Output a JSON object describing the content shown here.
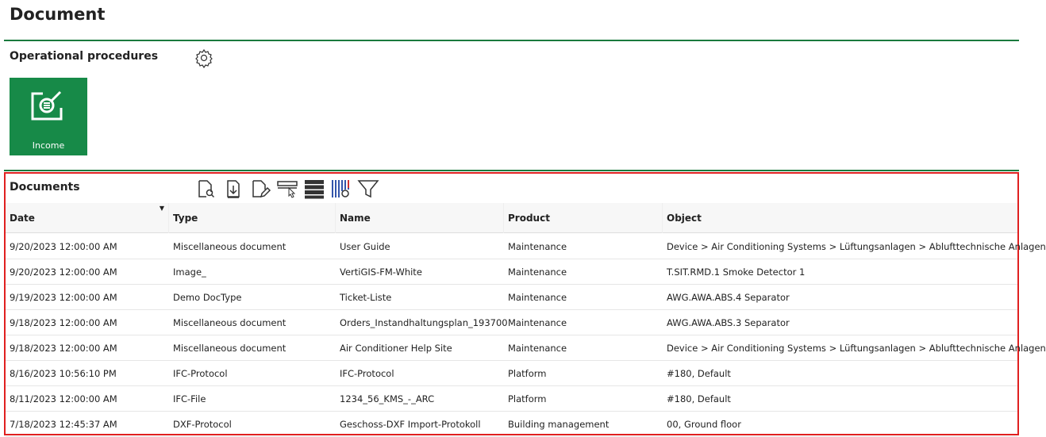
{
  "page_title": "Document",
  "operational": {
    "title": "Operational procedures",
    "settings_icon": "gear-icon",
    "tiles": [
      {
        "label": "Income",
        "icon": "document-search-icon",
        "color": "#178a48"
      }
    ]
  },
  "documents": {
    "title": "Documents",
    "toolbar": [
      "view-document-icon",
      "download-document-icon",
      "edit-document-icon",
      "select-row-icon",
      "rows-icon",
      "column-settings-icon",
      "filter-icon"
    ],
    "columns": [
      "Date",
      "Type",
      "Name",
      "Product",
      "Object"
    ],
    "sort": {
      "column": "Date",
      "direction": "descending"
    },
    "rows": [
      [
        "9/20/2023 12:00:00 AM",
        "Miscellaneous document",
        "User Guide",
        "Maintenance",
        "Device > Air Conditioning Systems > Lüftungsanlagen > Ablufttechnische Anlagen"
      ],
      [
        "9/20/2023 12:00:00 AM",
        "Image_",
        "VertiGIS-FM-White",
        "Maintenance",
        "T.SIT.RMD.1 Smoke Detector 1"
      ],
      [
        "9/19/2023 12:00:00 AM",
        "Demo DocType",
        "Ticket-Liste",
        "Maintenance",
        "AWG.AWA.ABS.4 Separator"
      ],
      [
        "9/18/2023 12:00:00 AM",
        "Miscellaneous document",
        "Orders_Instandhaltungsplan_193700",
        "Maintenance",
        "AWG.AWA.ABS.3 Separator"
      ],
      [
        "9/18/2023 12:00:00 AM",
        "Miscellaneous document",
        "Air Conditioner Help Site",
        "Maintenance",
        "Device > Air Conditioning Systems > Lüftungsanlagen > Ablufttechnische Anlagen"
      ],
      [
        "8/16/2023 10:56:10 PM",
        "IFC-Protocol",
        "IFC-Protocol",
        "Platform",
        "#180, Default"
      ],
      [
        "8/11/2023 12:00:00 AM",
        "IFC-File",
        "1234_56_KMS_-_ARC",
        "Platform",
        "#180, Default"
      ],
      [
        "7/18/2023 12:45:37 AM",
        "DXF-Protocol",
        "Geschoss-DXF Import-Protokoll",
        "Building management",
        "00, Ground floor"
      ]
    ]
  }
}
